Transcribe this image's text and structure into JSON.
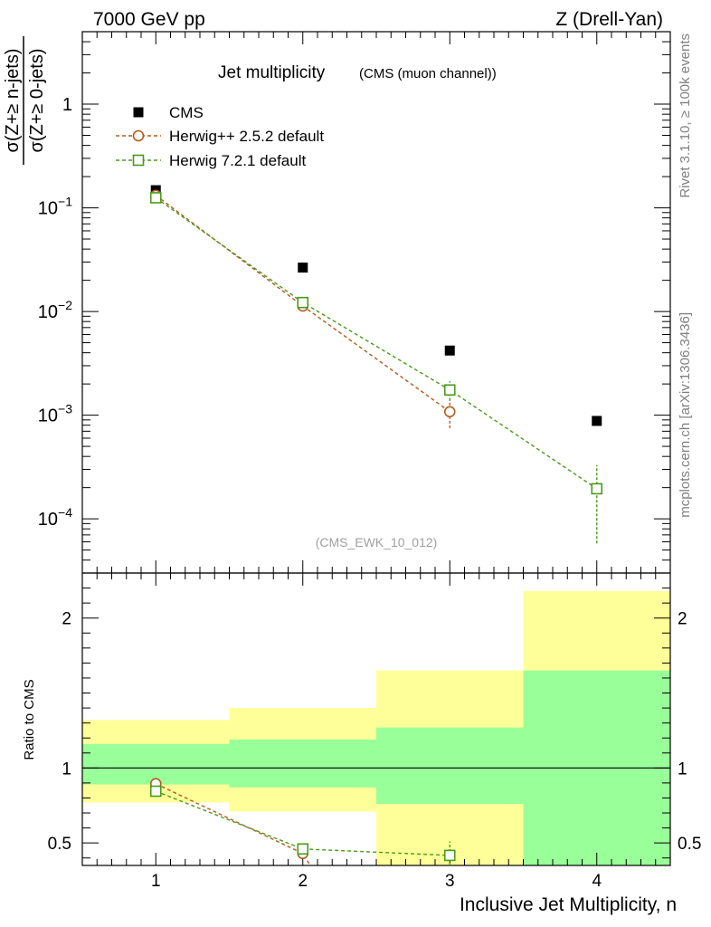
{
  "header": {
    "left": "7000 GeV pp",
    "right": "Z (Drell-Yan)"
  },
  "side_labels": {
    "rivet": "Rivet 3.1.10, ≥ 100k events",
    "mcplots": "mcplots.cern.ch [arXiv:1306.3436]"
  },
  "colors": {
    "cms": "#000000",
    "herwig_pp": "#b15c1c",
    "herwig7": "#4a9a1c",
    "band_inner": "#99ff99",
    "band_outer": "#ffff99"
  },
  "chart_data": [
    {
      "type": "scatter",
      "title": "Jet multiplicity",
      "subtitle": "(CMS (muon channel))",
      "ylabel_num": "σ(Z+≥ n-jets)",
      "ylabel_den": "σ(Z+≥ 0-jets)",
      "yscale": "log",
      "xlim": [
        0.5,
        4.5
      ],
      "ylim": [
        3e-05,
        5
      ],
      "x_ticks": [
        1,
        2,
        3,
        4
      ],
      "y_ticks": [
        {
          "value": 0.0001,
          "mant": "10",
          "exp": "−4"
        },
        {
          "value": 0.001,
          "mant": "10",
          "exp": "−3"
        },
        {
          "value": 0.01,
          "mant": "10",
          "exp": "−2"
        },
        {
          "value": 0.1,
          "mant": "10",
          "exp": "−1"
        },
        {
          "value": 1,
          "mant": "1",
          "exp": ""
        }
      ],
      "watermark": "(CMS_EWK_10_012)",
      "legend_position": "top-left",
      "series": [
        {
          "name": "CMS",
          "style": "square-filled",
          "points": [
            {
              "x": 1,
              "y": 0.148
            },
            {
              "x": 2,
              "y": 0.0265
            },
            {
              "x": 3,
              "y": 0.0042
            },
            {
              "x": 4,
              "y": 0.00088
            }
          ]
        },
        {
          "name": "Herwig++ 2.5.2 default",
          "style": "circle-open",
          "points": [
            {
              "x": 1,
              "y": 0.132,
              "lo": 0.128,
              "hi": 0.136
            },
            {
              "x": 2,
              "y": 0.0113,
              "lo": 0.0108,
              "hi": 0.0118
            },
            {
              "x": 3,
              "y": 0.00108,
              "lo": 0.00075,
              "hi": 0.00142
            }
          ]
        },
        {
          "name": "Herwig 7.2.1 default",
          "style": "square-open",
          "points": [
            {
              "x": 1,
              "y": 0.125,
              "lo": 0.121,
              "hi": 0.129
            },
            {
              "x": 2,
              "y": 0.0122,
              "lo": 0.0116,
              "hi": 0.0128
            },
            {
              "x": 3,
              "y": 0.00175,
              "lo": 0.00138,
              "hi": 0.00213
            },
            {
              "x": 4,
              "y": 0.000195,
              "lo": 5.8e-05,
              "hi": 0.00033
            }
          ]
        }
      ]
    },
    {
      "type": "scatter",
      "ylabel": "Ratio to CMS",
      "xlabel": "Inclusive Jet Multiplicity, n",
      "xlim": [
        0.5,
        4.5
      ],
      "ylim": [
        0.35,
        2.3
      ],
      "x_ticks": [
        1,
        2,
        3,
        4
      ],
      "y_ticks": [
        0.5,
        1,
        2
      ],
      "bands": [
        {
          "x0": 0.5,
          "x1": 1.5,
          "inner": [
            0.89,
            1.16
          ],
          "outer": [
            0.77,
            1.32
          ]
        },
        {
          "x0": 1.5,
          "x1": 2.5,
          "inner": [
            0.87,
            1.19
          ],
          "outer": [
            0.71,
            1.4
          ]
        },
        {
          "x0": 2.5,
          "x1": 3.5,
          "inner": [
            0.76,
            1.27
          ],
          "outer": [
            0.35,
            1.65
          ]
        },
        {
          "x0": 3.5,
          "x1": 4.5,
          "inner": [
            0.35,
            1.65
          ],
          "outer": [
            0.35,
            2.18
          ]
        }
      ],
      "series": [
        {
          "name": "Herwig++ 2.5.2 default",
          "style": "circle-open",
          "points": [
            {
              "x": 1,
              "y": 0.895,
              "lo": 0.87,
              "hi": 0.92
            },
            {
              "x": 2,
              "y": 0.43,
              "lo": 0.41,
              "hi": 0.45
            },
            {
              "x": 2.05,
              "y": 0.35
            }
          ]
        },
        {
          "name": "Herwig 7.2.1 default",
          "style": "square-open",
          "points": [
            {
              "x": 1,
              "y": 0.845,
              "lo": 0.82,
              "hi": 0.87
            },
            {
              "x": 2,
              "y": 0.46,
              "lo": 0.44,
              "hi": 0.49
            },
            {
              "x": 3,
              "y": 0.417,
              "lo": 0.35,
              "hi": 0.51
            }
          ]
        }
      ]
    }
  ]
}
